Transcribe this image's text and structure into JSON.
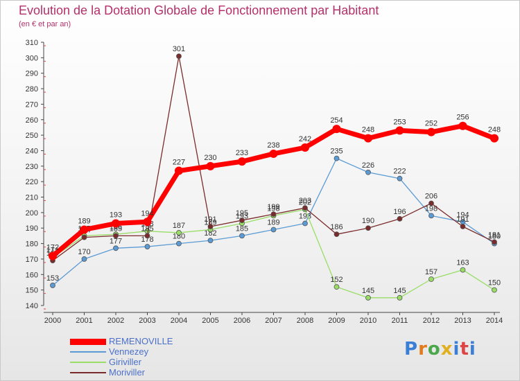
{
  "chart_data": {
    "type": "line",
    "title": "Evolution de la Dotation Globale de Fonctionnement par Habitant",
    "subtitle": "(en € et par an)",
    "categories": [
      "2000",
      "2001",
      "2002",
      "2003",
      "2004",
      "2005",
      "2006",
      "2007",
      "2008",
      "2009",
      "2010",
      "2011",
      "2012",
      "2013",
      "2014"
    ],
    "ylim": [
      140,
      310
    ],
    "yticks": [
      140,
      150,
      160,
      170,
      180,
      190,
      200,
      210,
      220,
      230,
      240,
      250,
      260,
      270,
      280,
      290,
      300,
      310
    ],
    "grid": false,
    "legend_position": "bottom-left",
    "series": [
      {
        "name": "REMENOVILLE",
        "color": "#ff0000",
        "values": [
          172,
          189,
          193,
          194,
          227,
          230,
          233,
          238,
          242,
          254,
          248,
          253,
          252,
          256,
          248
        ]
      },
      {
        "name": "Vennezey",
        "color": "#5b9bd5",
        "values": [
          153,
          170,
          177,
          178,
          180,
          182,
          185,
          189,
          193,
          235,
          226,
          222,
          198,
          194,
          180
        ]
      },
      {
        "name": "Giriviller",
        "color": "#99dd66",
        "values": [
          171,
          185,
          186,
          188,
          187,
          189,
          193,
          198,
          202,
          152,
          145,
          145,
          157,
          163,
          150
        ]
      },
      {
        "name": "Moriviller",
        "color": "#7a2b2b",
        "values": [
          169,
          184,
          185,
          185,
          301,
          191,
          195,
          199,
          203,
          186,
          190,
          196,
          206,
          191,
          181
        ]
      }
    ]
  },
  "brand": {
    "text": "Proxiti"
  }
}
